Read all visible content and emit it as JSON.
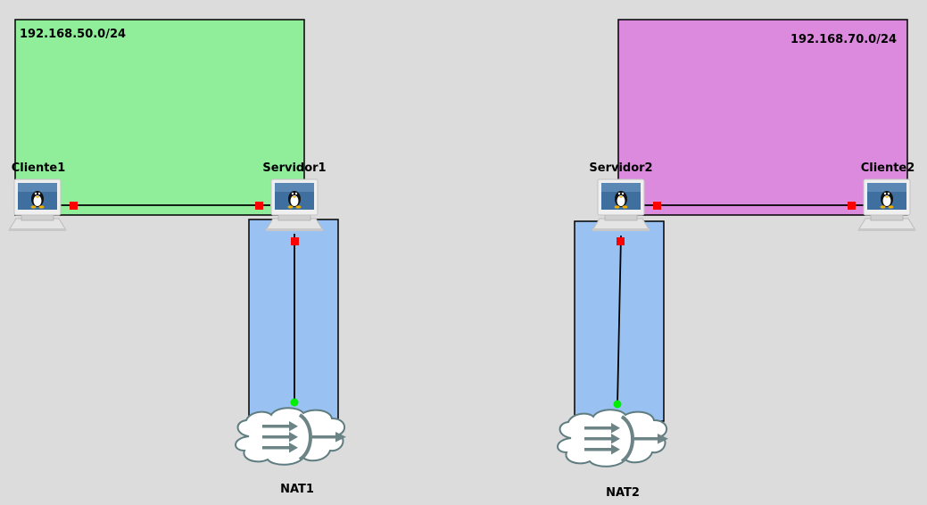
{
  "networks": [
    {
      "id": "net1",
      "label": "192.168.50.0/24",
      "color": "#90ee9b"
    },
    {
      "id": "net2",
      "label": "192.168.70.0/24",
      "color": "#db8ade"
    }
  ],
  "links_zone_color": "#99c2f2",
  "nodes": {
    "cliente1": {
      "label": "Cliente1",
      "type": "linux-host"
    },
    "servidor1": {
      "label": "Servidor1",
      "type": "linux-host"
    },
    "servidor2": {
      "label": "Servidor2",
      "type": "linux-host"
    },
    "cliente2": {
      "label": "Cliente2",
      "type": "linux-host"
    },
    "nat1": {
      "label": "NAT1",
      "type": "nat-cloud"
    },
    "nat2": {
      "label": "NAT2",
      "type": "nat-cloud"
    }
  },
  "colors": {
    "port_down": "#ff0000",
    "port_up": "#00ee00",
    "link": "#000000",
    "cloud_fill": "#ffffff",
    "cloud_stroke": "#5f7d80",
    "arrow": "#6c8486"
  }
}
